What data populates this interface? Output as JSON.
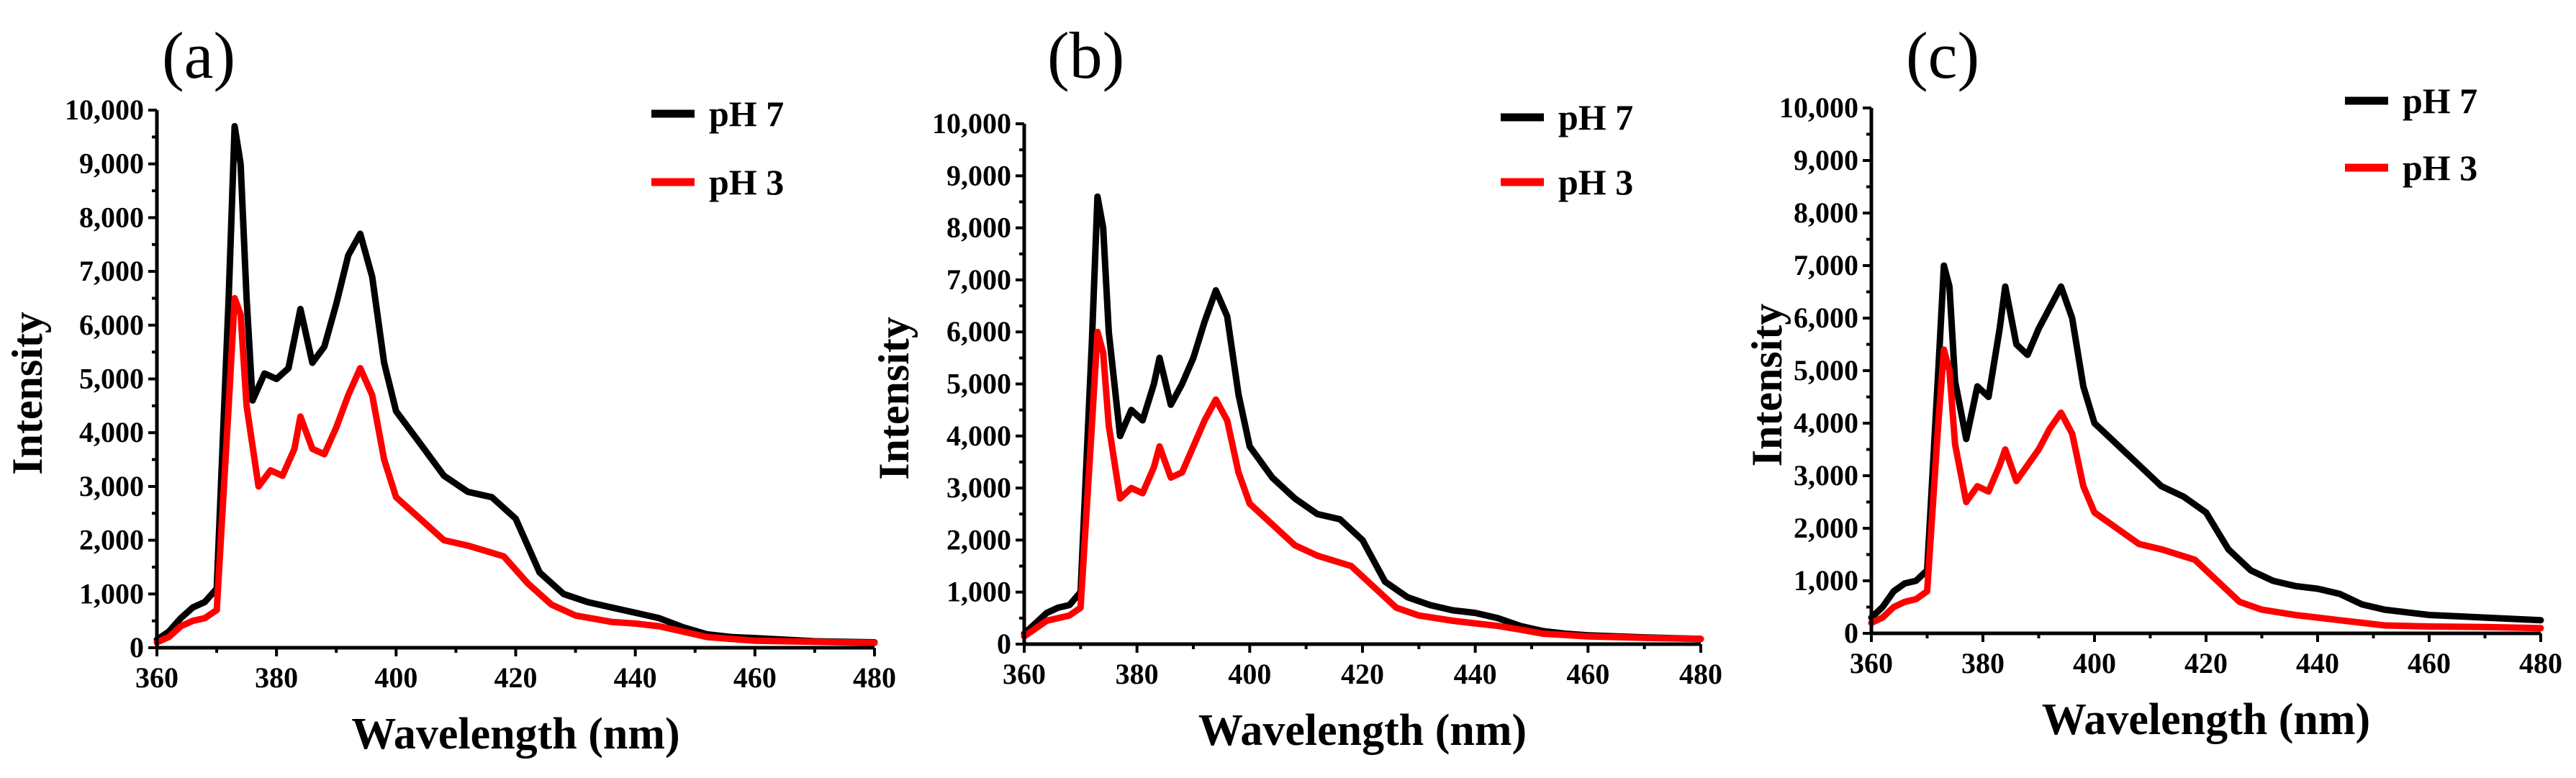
{
  "chart_data": [
    {
      "type": "line",
      "panel_label": "(a)",
      "xlabel": "Wavelength (nm)",
      "ylabel": "Intensity",
      "xlim": [
        360,
        480
      ],
      "ylim": [
        0,
        10000
      ],
      "x_ticks": [
        "360",
        "380",
        "400",
        "420",
        "440",
        "460",
        "480"
      ],
      "y_ticks": [
        "0",
        "1,000",
        "2,000",
        "3,000",
        "4,000",
        "5,000",
        "6,000",
        "7,000",
        "8,000",
        "9,000",
        "10,000"
      ],
      "legend_position": "top-right",
      "series": [
        {
          "name": "pH 7",
          "color": "#000000",
          "points": [
            [
              360,
              150
            ],
            [
              362,
              300
            ],
            [
              364,
              550
            ],
            [
              366,
              750
            ],
            [
              368,
              850
            ],
            [
              370,
              1100
            ],
            [
              372,
              6500
            ],
            [
              373,
              9700
            ],
            [
              374,
              9000
            ],
            [
              375,
              6500
            ],
            [
              376,
              4600
            ],
            [
              378,
              5100
            ],
            [
              380,
              5000
            ],
            [
              382,
              5200
            ],
            [
              384,
              6300
            ],
            [
              386,
              5300
            ],
            [
              388,
              5600
            ],
            [
              390,
              6400
            ],
            [
              392,
              7300
            ],
            [
              394,
              7700
            ],
            [
              396,
              6900
            ],
            [
              398,
              5300
            ],
            [
              400,
              4400
            ],
            [
              404,
              3800
            ],
            [
              408,
              3200
            ],
            [
              412,
              2900
            ],
            [
              416,
              2800
            ],
            [
              420,
              2400
            ],
            [
              424,
              1400
            ],
            [
              428,
              1000
            ],
            [
              432,
              850
            ],
            [
              436,
              750
            ],
            [
              440,
              650
            ],
            [
              444,
              550
            ],
            [
              448,
              380
            ],
            [
              452,
              250
            ],
            [
              456,
              200
            ],
            [
              460,
              180
            ],
            [
              470,
              120
            ],
            [
              480,
              100
            ]
          ]
        },
        {
          "name": "pH 3",
          "color": "#ff0000",
          "points": [
            [
              360,
              100
            ],
            [
              362,
              200
            ],
            [
              364,
              400
            ],
            [
              366,
              500
            ],
            [
              368,
              550
            ],
            [
              370,
              700
            ],
            [
              372,
              4500
            ],
            [
              373,
              6500
            ],
            [
              374,
              6200
            ],
            [
              375,
              4500
            ],
            [
              377,
              3000
            ],
            [
              379,
              3300
            ],
            [
              381,
              3200
            ],
            [
              383,
              3700
            ],
            [
              384,
              4300
            ],
            [
              386,
              3700
            ],
            [
              388,
              3600
            ],
            [
              390,
              4100
            ],
            [
              392,
              4700
            ],
            [
              394,
              5200
            ],
            [
              396,
              4700
            ],
            [
              398,
              3500
            ],
            [
              400,
              2800
            ],
            [
              404,
              2400
            ],
            [
              408,
              2000
            ],
            [
              412,
              1900
            ],
            [
              418,
              1700
            ],
            [
              422,
              1200
            ],
            [
              426,
              800
            ],
            [
              430,
              600
            ],
            [
              436,
              480
            ],
            [
              440,
              450
            ],
            [
              444,
              400
            ],
            [
              448,
              300
            ],
            [
              452,
              200
            ],
            [
              460,
              130
            ],
            [
              470,
              110
            ],
            [
              480,
              90
            ]
          ]
        }
      ]
    },
    {
      "type": "line",
      "panel_label": "(b)",
      "xlabel": "Wavelength (nm)",
      "ylabel": "Intensity",
      "xlim": [
        360,
        480
      ],
      "ylim": [
        0,
        10000
      ],
      "x_ticks": [
        "360",
        "380",
        "400",
        "420",
        "440",
        "460",
        "480"
      ],
      "y_ticks": [
        "0",
        "1,000",
        "2,000",
        "3,000",
        "4,000",
        "5,000",
        "6,000",
        "7,000",
        "8,000",
        "9,000",
        "10,000"
      ],
      "legend_position": "top-right",
      "series": [
        {
          "name": "pH 7",
          "color": "#000000",
          "points": [
            [
              360,
              200
            ],
            [
              362,
              400
            ],
            [
              364,
              600
            ],
            [
              366,
              700
            ],
            [
              368,
              750
            ],
            [
              370,
              1000
            ],
            [
              372,
              5800
            ],
            [
              373,
              8600
            ],
            [
              374,
              8000
            ],
            [
              375,
              6000
            ],
            [
              377,
              4000
            ],
            [
              379,
              4500
            ],
            [
              381,
              4300
            ],
            [
              383,
              5000
            ],
            [
              384,
              5500
            ],
            [
              386,
              4600
            ],
            [
              388,
              5000
            ],
            [
              390,
              5500
            ],
            [
              392,
              6200
            ],
            [
              394,
              6800
            ],
            [
              396,
              6300
            ],
            [
              398,
              4800
            ],
            [
              400,
              3800
            ],
            [
              404,
              3200
            ],
            [
              408,
              2800
            ],
            [
              412,
              2500
            ],
            [
              416,
              2400
            ],
            [
              420,
              2000
            ],
            [
              424,
              1200
            ],
            [
              428,
              900
            ],
            [
              432,
              750
            ],
            [
              436,
              650
            ],
            [
              440,
              600
            ],
            [
              444,
              500
            ],
            [
              448,
              350
            ],
            [
              452,
              250
            ],
            [
              456,
              200
            ],
            [
              460,
              170
            ],
            [
              470,
              130
            ],
            [
              480,
              100
            ]
          ]
        },
        {
          "name": "pH 3",
          "color": "#ff0000",
          "points": [
            [
              360,
              150
            ],
            [
              362,
              300
            ],
            [
              364,
              450
            ],
            [
              366,
              500
            ],
            [
              368,
              550
            ],
            [
              370,
              700
            ],
            [
              372,
              4200
            ],
            [
              373,
              6000
            ],
            [
              374,
              5600
            ],
            [
              375,
              4200
            ],
            [
              377,
              2800
            ],
            [
              379,
              3000
            ],
            [
              381,
              2900
            ],
            [
              383,
              3400
            ],
            [
              384,
              3800
            ],
            [
              386,
              3200
            ],
            [
              388,
              3300
            ],
            [
              390,
              3800
            ],
            [
              392,
              4300
            ],
            [
              394,
              4700
            ],
            [
              396,
              4300
            ],
            [
              398,
              3300
            ],
            [
              400,
              2700
            ],
            [
              404,
              2300
            ],
            [
              408,
              1900
            ],
            [
              412,
              1700
            ],
            [
              418,
              1500
            ],
            [
              422,
              1100
            ],
            [
              426,
              700
            ],
            [
              430,
              550
            ],
            [
              436,
              450
            ],
            [
              440,
              400
            ],
            [
              444,
              350
            ],
            [
              448,
              280
            ],
            [
              452,
              200
            ],
            [
              460,
              150
            ],
            [
              470,
              120
            ],
            [
              480,
              100
            ]
          ]
        }
      ]
    },
    {
      "type": "line",
      "panel_label": "(c)",
      "xlabel": "Wavelength (nm)",
      "ylabel": "Intensity",
      "xlim": [
        360,
        480
      ],
      "ylim": [
        0,
        10000
      ],
      "x_ticks": [
        "360",
        "380",
        "400",
        "420",
        "440",
        "460",
        "480"
      ],
      "y_ticks": [
        "0",
        "1,000",
        "2,000",
        "3,000",
        "4,000",
        "5,000",
        "6,000",
        "7,000",
        "8,000",
        "9,000",
        "10,000"
      ],
      "legend_position": "top-right",
      "series": [
        {
          "name": "pH 7",
          "color": "#000000",
          "points": [
            [
              360,
              300
            ],
            [
              362,
              500
            ],
            [
              364,
              800
            ],
            [
              366,
              950
            ],
            [
              368,
              1000
            ],
            [
              370,
              1200
            ],
            [
              372,
              5000
            ],
            [
              373,
              7000
            ],
            [
              374,
              6600
            ],
            [
              375,
              4800
            ],
            [
              377,
              3700
            ],
            [
              379,
              4700
            ],
            [
              381,
              4500
            ],
            [
              383,
              5800
            ],
            [
              384,
              6600
            ],
            [
              386,
              5500
            ],
            [
              388,
              5300
            ],
            [
              390,
              5800
            ],
            [
              392,
              6200
            ],
            [
              394,
              6600
            ],
            [
              396,
              6000
            ],
            [
              398,
              4700
            ],
            [
              400,
              4000
            ],
            [
              404,
              3600
            ],
            [
              408,
              3200
            ],
            [
              412,
              2800
            ],
            [
              416,
              2600
            ],
            [
              420,
              2300
            ],
            [
              424,
              1600
            ],
            [
              428,
              1200
            ],
            [
              432,
              1000
            ],
            [
              436,
              900
            ],
            [
              440,
              850
            ],
            [
              444,
              750
            ],
            [
              448,
              550
            ],
            [
              452,
              450
            ],
            [
              456,
              400
            ],
            [
              460,
              350
            ],
            [
              470,
              300
            ],
            [
              480,
              250
            ]
          ]
        },
        {
          "name": "pH 3",
          "color": "#ff0000",
          "points": [
            [
              360,
              200
            ],
            [
              362,
              300
            ],
            [
              364,
              500
            ],
            [
              366,
              600
            ],
            [
              368,
              650
            ],
            [
              370,
              800
            ],
            [
              372,
              4000
            ],
            [
              373,
              5400
            ],
            [
              374,
              5000
            ],
            [
              375,
              3600
            ],
            [
              377,
              2500
            ],
            [
              379,
              2800
            ],
            [
              381,
              2700
            ],
            [
              383,
              3200
            ],
            [
              384,
              3500
            ],
            [
              386,
              2900
            ],
            [
              388,
              3200
            ],
            [
              390,
              3500
            ],
            [
              392,
              3900
            ],
            [
              394,
              4200
            ],
            [
              396,
              3800
            ],
            [
              398,
              2800
            ],
            [
              400,
              2300
            ],
            [
              404,
              2000
            ],
            [
              408,
              1700
            ],
            [
              412,
              1600
            ],
            [
              418,
              1400
            ],
            [
              422,
              1000
            ],
            [
              426,
              600
            ],
            [
              430,
              450
            ],
            [
              436,
              350
            ],
            [
              440,
              300
            ],
            [
              444,
              250
            ],
            [
              448,
              200
            ],
            [
              452,
              150
            ],
            [
              460,
              130
            ],
            [
              470,
              120
            ],
            [
              480,
              100
            ]
          ]
        }
      ]
    }
  ]
}
